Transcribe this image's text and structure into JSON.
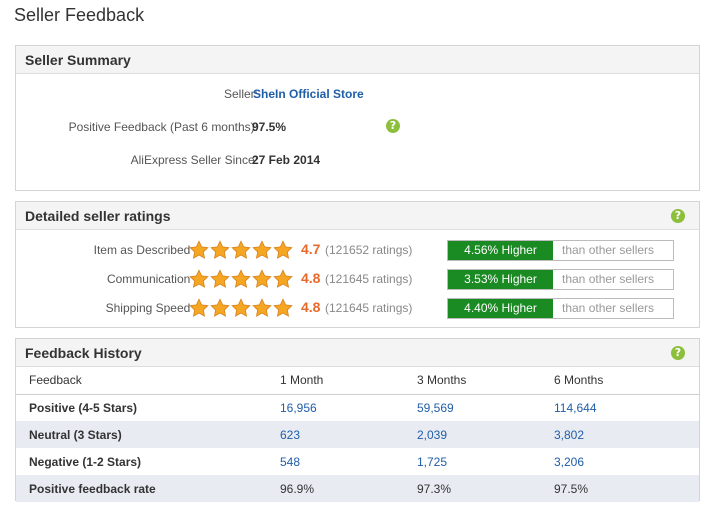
{
  "page": {
    "title": "Seller Feedback"
  },
  "summary": {
    "heading": "Seller Summary",
    "seller_label": "Seller:",
    "seller_name": "SheIn Official Store",
    "positive_label": "Positive Feedback (Past 6 months):",
    "positive_value": "97.5%",
    "since_label": "AliExpress Seller Since:",
    "since_value": "27 Feb 2014"
  },
  "ratings": {
    "heading": "Detailed seller ratings",
    "items": [
      {
        "label": "Item as Described :",
        "stars": 5,
        "score": "4.7",
        "count": "(121652 ratings)",
        "diff": "4.56% Higher",
        "compare": "than other sellers"
      },
      {
        "label": "Communication :",
        "stars": 5,
        "score": "4.8",
        "count": "(121645 ratings)",
        "diff": "3.53% Higher",
        "compare": "than other sellers"
      },
      {
        "label": "Shipping Speed :",
        "stars": 5,
        "score": "4.8",
        "count": "(121645 ratings)",
        "diff": "4.40% Higher",
        "compare": "than other sellers"
      }
    ]
  },
  "history": {
    "heading": "Feedback History",
    "columns": [
      "Feedback",
      "1 Month",
      "3 Months",
      "6 Months"
    ],
    "rows": [
      {
        "label": "Positive (4-5 Stars)",
        "values": [
          "16,956",
          "59,569",
          "114,644"
        ]
      },
      {
        "label": "Neutral (3 Stars)",
        "values": [
          "623",
          "2,039",
          "3,802"
        ]
      },
      {
        "label": "Negative (1-2 Stars)",
        "values": [
          "548",
          "1,725",
          "3,206"
        ]
      },
      {
        "label": "Positive feedback rate",
        "values": [
          "96.9%",
          "97.3%",
          "97.5%"
        ]
      }
    ]
  },
  "colors": {
    "accent_green": "#1a8a22",
    "score_orange": "#e8692a",
    "link_blue": "#1f5ea8",
    "star_orange": "#f5a623"
  },
  "icons": {
    "help": "question-circle-icon",
    "rating": "star-icon"
  }
}
